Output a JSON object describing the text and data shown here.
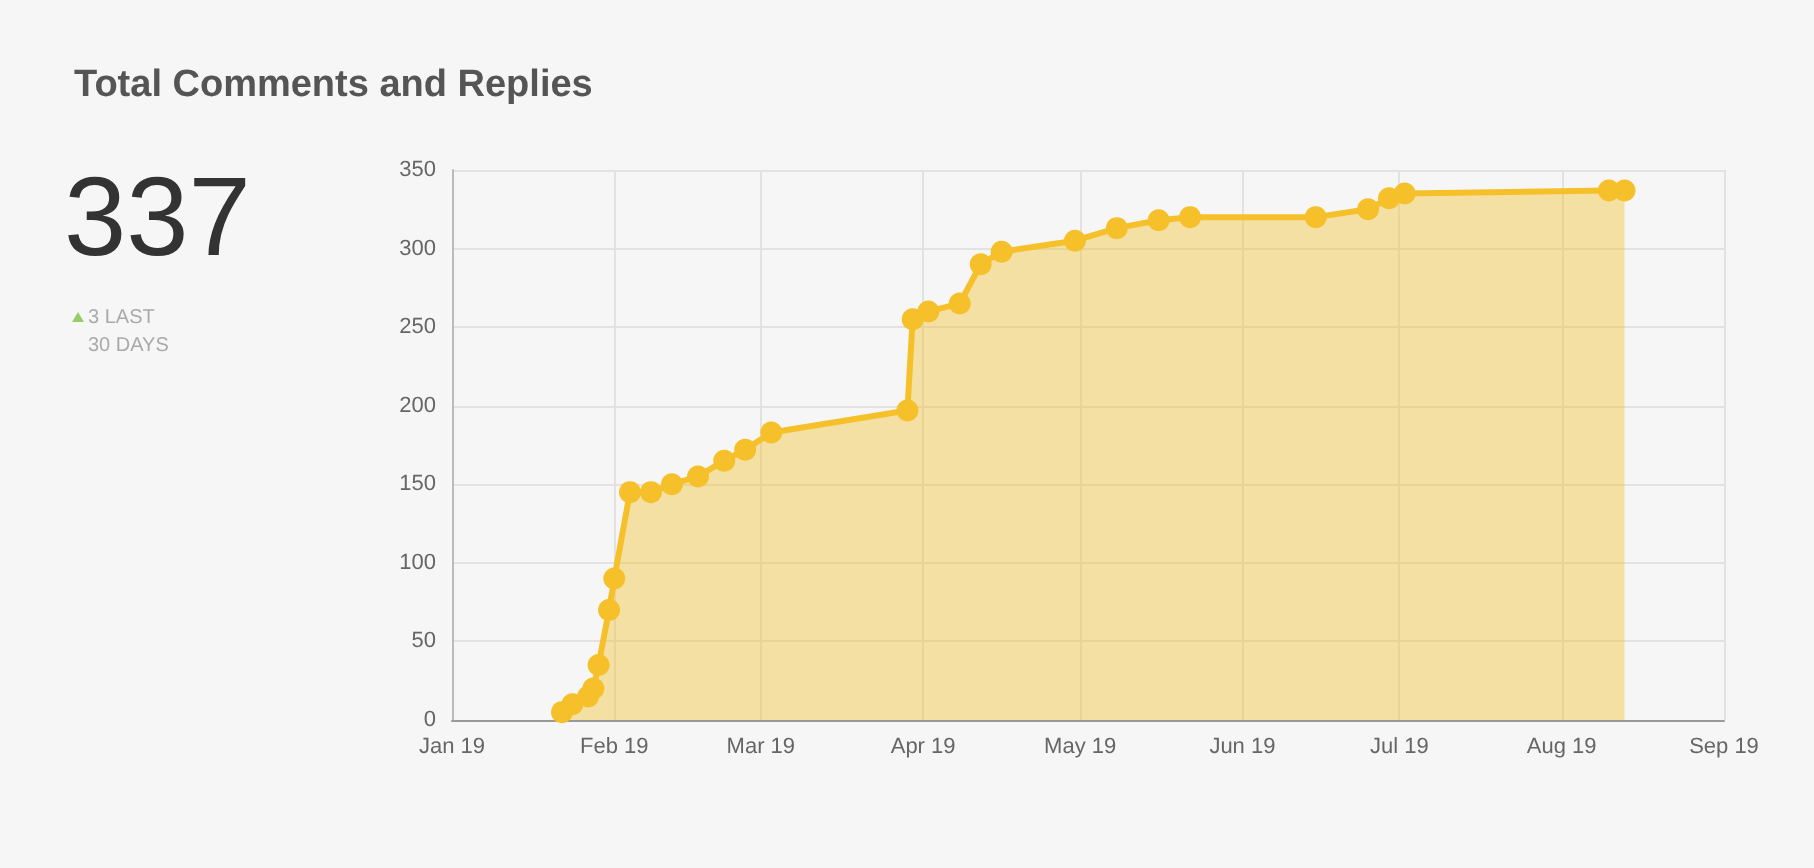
{
  "chart_data": {
    "type": "area",
    "title": "Total Comments and Replies",
    "annotations": [
      "337",
      "3 LAST 30 DAYS"
    ],
    "x": [
      "2019-01-22",
      "2019-01-24",
      "2019-01-27",
      "2019-01-28",
      "2019-01-29",
      "2019-01-31",
      "2019-02-01",
      "2019-02-04",
      "2019-02-08",
      "2019-02-12",
      "2019-02-17",
      "2019-02-22",
      "2019-02-26",
      "2019-03-03",
      "2019-03-29",
      "2019-03-30",
      "2019-04-02",
      "2019-04-08",
      "2019-04-12",
      "2019-04-16",
      "2019-04-30",
      "2019-05-08",
      "2019-05-16",
      "2019-05-22",
      "2019-06-15",
      "2019-06-25",
      "2019-06-29",
      "2019-07-02",
      "2019-08-10",
      "2019-08-13"
    ],
    "series": [
      {
        "color": "#f5c02a",
        "values": [
          5,
          10,
          15,
          20,
          35,
          70,
          90,
          145,
          145,
          150,
          155,
          165,
          172,
          183,
          197,
          255,
          260,
          265,
          290,
          298,
          305,
          313,
          318,
          320,
          320,
          325,
          332,
          335,
          337,
          337
        ]
      }
    ],
    "xlim": [
      "2019-01-01",
      "2019-09-01"
    ],
    "xticks": [
      {
        "value": "2019-01-01",
        "label": "Jan 19"
      },
      {
        "value": "2019-02-01",
        "label": "Feb 19"
      },
      {
        "value": "2019-03-01",
        "label": "Mar 19"
      },
      {
        "value": "2019-04-01",
        "label": "Apr 19"
      },
      {
        "value": "2019-05-01",
        "label": "May 19"
      },
      {
        "value": "2019-06-01",
        "label": "Jun 19"
      },
      {
        "value": "2019-07-01",
        "label": "Jul 19"
      },
      {
        "value": "2019-08-01",
        "label": "Aug 19"
      },
      {
        "value": "2019-09-01",
        "label": "Sep 19"
      }
    ],
    "ylim": [
      0,
      350
    ],
    "yticks": [
      0,
      50,
      100,
      150,
      200,
      250,
      300,
      350
    ],
    "grid": true,
    "marker": "circle",
    "line_style": "solid"
  }
}
